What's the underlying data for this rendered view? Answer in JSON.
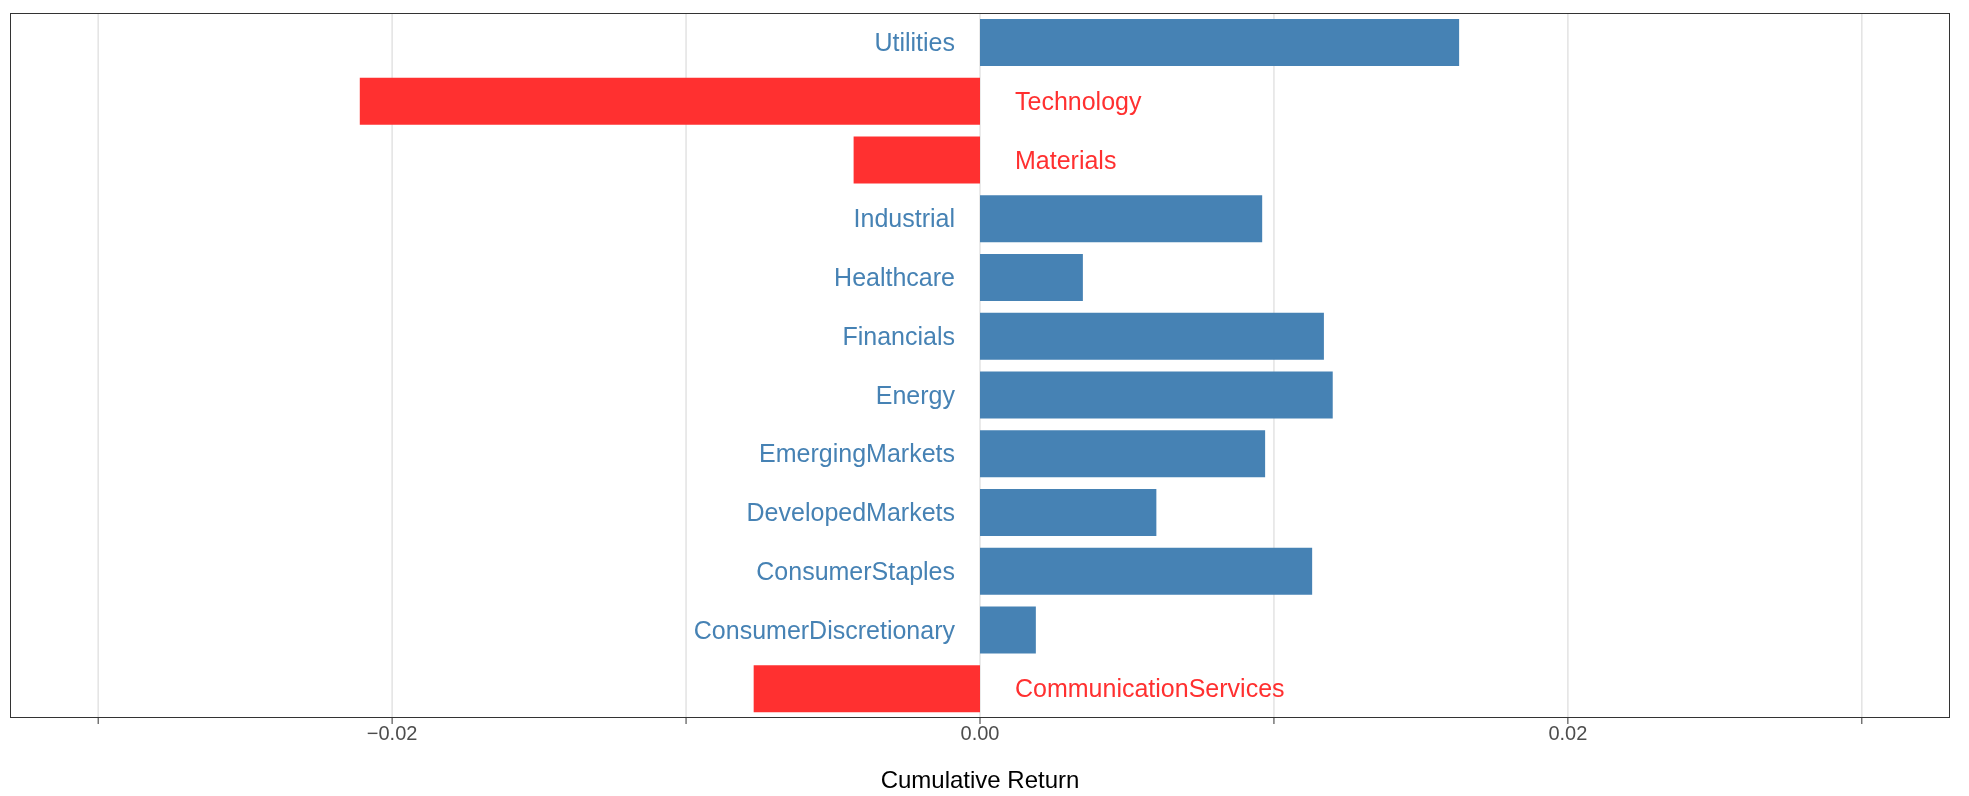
{
  "chart_data": {
    "type": "bar",
    "orientation": "horizontal",
    "xlabel": "Cumulative Return",
    "categories": [
      "Utilities",
      "Technology",
      "Materials",
      "Industrial",
      "Healthcare",
      "Financials",
      "Energy",
      "EmergingMarkets",
      "DevelopedMarkets",
      "ConsumerStaples",
      "ConsumerDiscretionary",
      "CommunicationServices"
    ],
    "values": [
      0.0163,
      -0.0211,
      -0.0043,
      0.0096,
      0.0035,
      0.0117,
      0.012,
      0.0097,
      0.006,
      0.0113,
      0.0019,
      -0.0077
    ],
    "colors": [
      "#4682b4",
      "#ff3030",
      "#ff3030",
      "#4682b4",
      "#4682b4",
      "#4682b4",
      "#4682b4",
      "#4682b4",
      "#4682b4",
      "#4682b4",
      "#4682b4",
      "#ff3030"
    ],
    "xlim": [
      -0.033,
      0.033
    ],
    "xticks": [
      {
        "value": -0.03,
        "label": null
      },
      {
        "value": -0.02,
        "label": "−0.02"
      },
      {
        "value": -0.01,
        "label": null
      },
      {
        "value": 0,
        "label": "0.00"
      },
      {
        "value": 0.01,
        "label": null
      },
      {
        "value": 0.02,
        "label": "0.02"
      },
      {
        "value": 0.03,
        "label": null
      }
    ],
    "grid": "x",
    "tick_labels": "x"
  }
}
